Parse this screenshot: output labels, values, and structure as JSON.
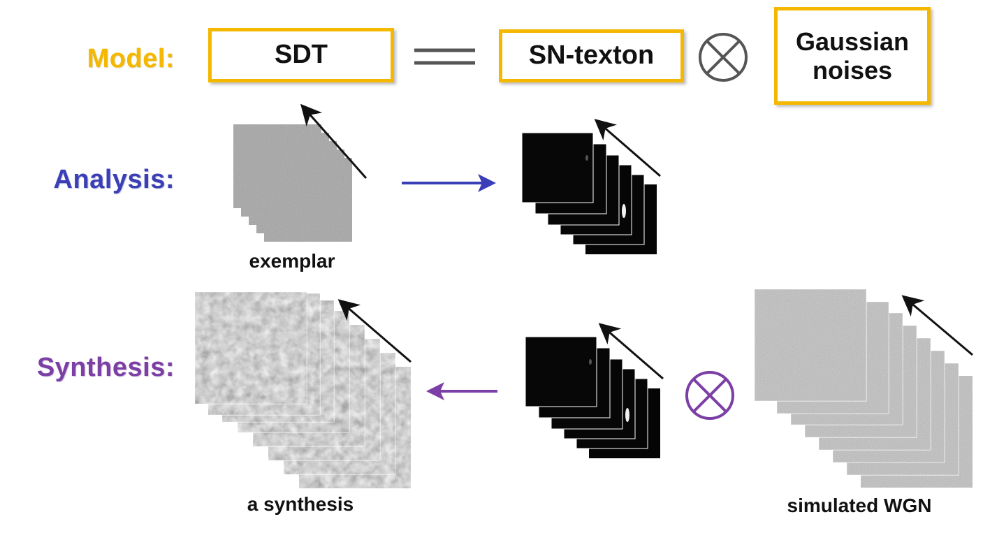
{
  "labels": {
    "model": "Model:",
    "analysis": "Analysis:",
    "synthesis": "Synthesis:"
  },
  "model": {
    "sdt": "SDT",
    "sn_texton": "SN-texton",
    "gaussian_line1": "Gaussian",
    "gaussian_line2": "noises"
  },
  "captions": {
    "exemplar": "exemplar",
    "synthesis": "a synthesis",
    "wgn": "simulated WGN"
  },
  "colors": {
    "model": "#f5b800",
    "analysis": "#3a3fb8",
    "synthesis": "#7b3fa5",
    "box_border": "#f5b800"
  },
  "icons": {
    "equals": "double-line-equals-icon",
    "convolve": "circled-times-icon",
    "analysis_arrow": "arrow-right-icon",
    "synthesis_arrow": "arrow-left-icon",
    "time_arrow": "diagonal-arrow-icon"
  }
}
